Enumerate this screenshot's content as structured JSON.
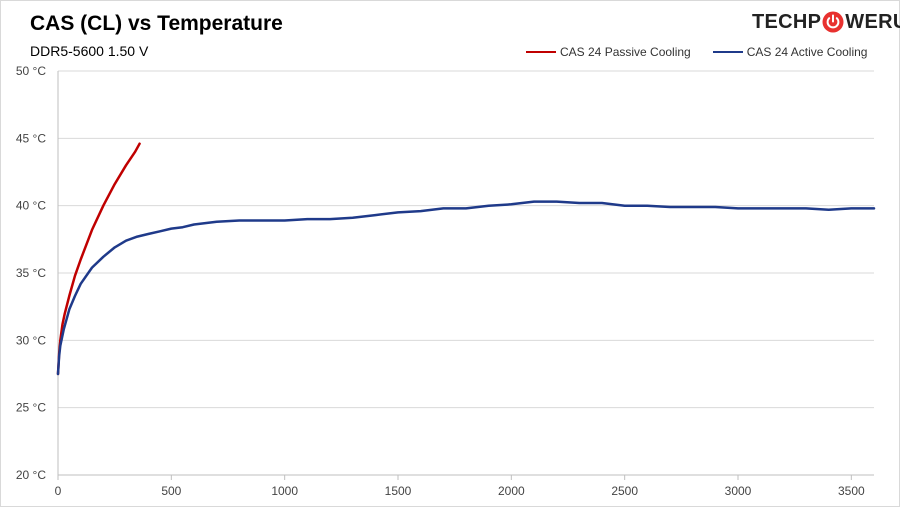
{
  "header": {
    "title": "CAS (CL) vs Temperature",
    "subtitle": "DDR5-5600 1.50 V",
    "logo_text_left": "TECHP",
    "logo_text_right": "WERUP",
    "logo_icon": "power-icon"
  },
  "colors": {
    "passive": "#c00000",
    "active": "#1f3a8a",
    "grid": "#d9d9d9",
    "logo_red": "#e8312f"
  },
  "chart_data": {
    "type": "line",
    "title": "CAS (CL) vs Temperature",
    "subtitle": "DDR5-5600 1.50 V",
    "xlabel": "",
    "ylabel": "",
    "xlim": [
      0,
      3600
    ],
    "ylim": [
      20,
      50
    ],
    "x_ticks": [
      0,
      500,
      1000,
      1500,
      2000,
      2500,
      3000,
      3500
    ],
    "y_ticks": [
      20,
      25,
      30,
      35,
      40,
      45,
      50
    ],
    "y_tick_labels": [
      "20 °C",
      "25 °C",
      "30 °C",
      "35 °C",
      "40 °C",
      "45 °C",
      "50 °C"
    ],
    "grid": "horizontal",
    "legend_position": "top-right",
    "series": [
      {
        "name": "CAS 24 Passive Cooling",
        "color": "#c00000",
        "x": [
          0,
          5,
          10,
          20,
          30,
          50,
          75,
          100,
          150,
          200,
          250,
          300,
          340,
          360
        ],
        "y": [
          27.5,
          29.0,
          30.0,
          31.2,
          32.0,
          33.3,
          34.8,
          36.0,
          38.2,
          40.0,
          41.6,
          43.0,
          44.0,
          44.6
        ]
      },
      {
        "name": "CAS 24 Active Cooling",
        "color": "#1f3a8a",
        "x": [
          0,
          5,
          10,
          25,
          50,
          75,
          100,
          150,
          200,
          250,
          300,
          350,
          400,
          450,
          500,
          550,
          600,
          700,
          800,
          900,
          1000,
          1100,
          1200,
          1300,
          1400,
          1500,
          1600,
          1700,
          1800,
          1900,
          2000,
          2100,
          2200,
          2300,
          2400,
          2500,
          2600,
          2700,
          2800,
          2900,
          3000,
          3100,
          3200,
          3300,
          3400,
          3500,
          3600
        ],
        "y": [
          27.5,
          28.8,
          29.6,
          30.8,
          32.3,
          33.3,
          34.2,
          35.4,
          36.2,
          36.9,
          37.4,
          37.7,
          37.9,
          38.1,
          38.3,
          38.4,
          38.6,
          38.8,
          38.9,
          38.9,
          38.9,
          39.0,
          39.0,
          39.1,
          39.3,
          39.5,
          39.6,
          39.8,
          39.8,
          40.0,
          40.1,
          40.3,
          40.3,
          40.2,
          40.2,
          40.0,
          40.0,
          39.9,
          39.9,
          39.9,
          39.8,
          39.8,
          39.8,
          39.8,
          39.7,
          39.8,
          39.8
        ]
      }
    ]
  }
}
